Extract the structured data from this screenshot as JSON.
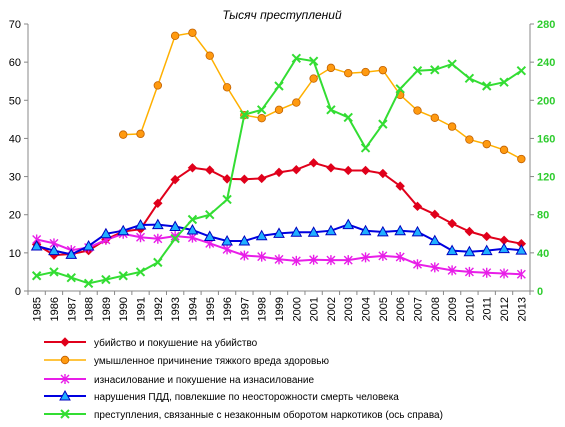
{
  "chart_data": {
    "type": "line",
    "title": "Тысяч преступлений",
    "x": [
      "1985",
      "1986",
      "1987",
      "1988",
      "1989",
      "1990",
      "1991",
      "1992",
      "1993",
      "1994",
      "1995",
      "1996",
      "1997",
      "1998",
      "1999",
      "2000",
      "2001",
      "2002",
      "2003",
      "2004",
      "2005",
      "2006",
      "2007",
      "2008",
      "2009",
      "2010",
      "2011",
      "2012",
      "2013"
    ],
    "ylim_left": [
      0,
      70
    ],
    "yticks_left": [
      "0",
      "10",
      "20",
      "30",
      "40",
      "50",
      "60",
      "70"
    ],
    "ylim_right": [
      0,
      280
    ],
    "yticks_right": [
      "0",
      "40",
      "80",
      "120",
      "160",
      "200",
      "240",
      "280"
    ],
    "grid": false,
    "legend_position": "bottom",
    "series": [
      {
        "name": "убийство и покушение на убийство",
        "axis": "left",
        "color": "#e0001b",
        "marker": "diamond",
        "values": [
          12.2,
          9.4,
          9.7,
          10.6,
          13.5,
          15.6,
          16.2,
          23.0,
          29.2,
          32.3,
          31.7,
          29.4,
          29.3,
          29.5,
          31.1,
          31.8,
          33.6,
          32.3,
          31.6,
          31.6,
          30.8,
          27.5,
          22.2,
          20.1,
          17.7,
          15.6,
          14.3,
          13.3,
          12.4
        ]
      },
      {
        "name": "умышленное причинение тяжкого вреда здоровью",
        "axis": "left",
        "color": "#ffb000",
        "marker": "circle",
        "values": [
          null,
          null,
          null,
          null,
          null,
          41.0,
          41.2,
          53.9,
          66.9,
          67.7,
          61.7,
          53.4,
          46.1,
          45.3,
          47.5,
          49.4,
          55.7,
          58.5,
          57.1,
          57.4,
          57.9,
          51.4,
          47.3,
          45.4,
          43.1,
          39.7,
          38.5,
          37.0,
          34.6
        ]
      },
      {
        "name": "изнасилование и покушение на изнасилование",
        "axis": "left",
        "color": "#e81ee8",
        "marker": "star",
        "values": [
          13.5,
          12.5,
          10.7,
          11.4,
          13.4,
          15.0,
          14.1,
          13.7,
          14.4,
          14.0,
          12.5,
          10.9,
          9.3,
          9.0,
          8.3,
          7.9,
          8.2,
          8.1,
          8.1,
          8.8,
          9.2,
          8.9,
          7.0,
          6.2,
          5.4,
          5.0,
          4.8,
          4.6,
          4.4
        ]
      },
      {
        "name": "нарушения ПДД, повлекшие по неосторожности смерть человека",
        "axis": "left",
        "color": "#0000e0",
        "marker": "triangle",
        "values": [
          11.8,
          10.6,
          9.6,
          11.8,
          15.0,
          15.8,
          17.3,
          17.4,
          16.9,
          16.0,
          14.3,
          13.1,
          13.1,
          14.5,
          15.1,
          15.4,
          15.4,
          15.8,
          17.4,
          15.8,
          15.5,
          15.8,
          15.5,
          13.2,
          10.6,
          10.3,
          10.6,
          11.1,
          10.7
        ]
      },
      {
        "name": "преступления, связанные с незаконным оборотом наркотиков (ось справа)",
        "axis": "right",
        "color": "#33dd33",
        "marker": "cross",
        "values": [
          16,
          20,
          14,
          8,
          12,
          16,
          20,
          30,
          55,
          75,
          80,
          96,
          185,
          190,
          215,
          244,
          241,
          190,
          182,
          150,
          175,
          212,
          231,
          232,
          238,
          223,
          215,
          219,
          231
        ]
      }
    ]
  }
}
